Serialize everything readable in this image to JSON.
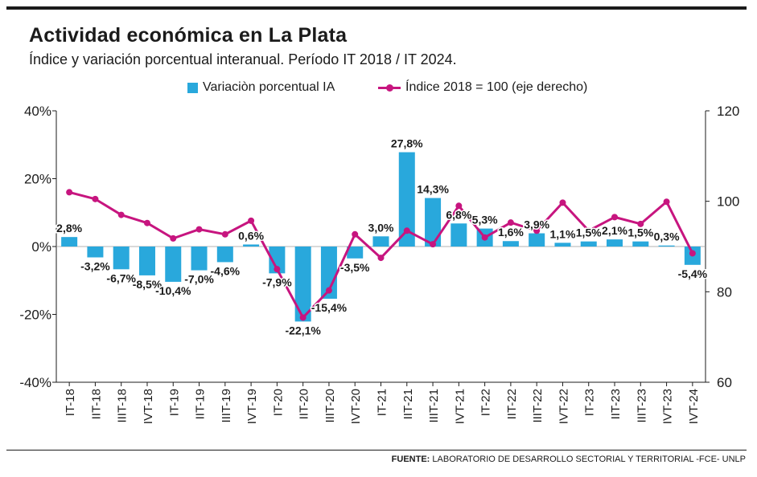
{
  "header": {
    "title": "Actividad económica en La Plata",
    "subtitle": "Índice y variación porcentual interanual. Período IT 2018 / IT 2024."
  },
  "legend": {
    "bar_label": "Variaciòn porcentual IA",
    "line_label": "Índice 2018 = 100 (eje derecho)"
  },
  "source": {
    "label": "FUENTE:",
    "text": "LABORATORIO DE DESARROLLO SECTORIAL Y TERRITORIAL -FCE- UNLP"
  },
  "colors": {
    "bar": "#29a8dc",
    "line": "#c7157f",
    "text": "#1b1b1b"
  },
  "chart_data": {
    "type": "bar",
    "title": "Actividad económica en La Plata",
    "categories": [
      "IT-18",
      "IIT-18",
      "IIIT-18",
      "IVT-18",
      "IT-19",
      "IIT-19",
      "IIIT-19",
      "IVT-19",
      "IT-20",
      "IIT-20",
      "IIIT-20",
      "IVT-20",
      "IT-21",
      "IIT-21",
      "IIIT-21",
      "IVT-21",
      "IT-22",
      "IIT-22",
      "IIIT-22",
      "IVT-22",
      "IT-23",
      "IIT-23",
      "IIIT-23",
      "IVT-23",
      "IVT-24"
    ],
    "series": [
      {
        "name": "Variaciòn porcentual IA",
        "type": "bar",
        "axis": "left",
        "values": [
          2.8,
          -3.2,
          -6.7,
          -8.5,
          -10.4,
          -7.0,
          -4.6,
          0.6,
          -7.9,
          -22.1,
          -15.4,
          -3.5,
          3.0,
          27.8,
          14.3,
          6.8,
          5.3,
          1.6,
          3.9,
          1.1,
          1.5,
          2.1,
          1.5,
          0.3,
          -5.4
        ],
        "labels": [
          "2,8%",
          "-3,2%",
          "-6,7%",
          "-8,5%",
          "-10,4%",
          "-7,0%",
          "-4,6%",
          "0,6%",
          "-7,9%",
          "-22,1%",
          "-15,4%",
          "-3,5%",
          "3,0%",
          "27,8%",
          "14,3%",
          "6,8%",
          "5,3%",
          "1,6%",
          "3,9%",
          "1,1%",
          "1,5%",
          "2,1%",
          "1,5%",
          "0,3%",
          "-5,4%"
        ]
      },
      {
        "name": "Índice 2018 = 100 (eje derecho)",
        "type": "line",
        "axis": "right",
        "values": [
          102,
          100.5,
          97,
          95.2,
          91.8,
          93.8,
          92.7,
          95.7,
          85,
          74.3,
          80.3,
          92.7,
          87.5,
          93.5,
          90.5,
          99,
          92,
          95.3,
          93.5,
          99.7,
          93.5,
          96.5,
          95,
          99.9,
          88.5
        ]
      }
    ],
    "y_left": {
      "ylim": [
        -40,
        40
      ],
      "ticks": [
        -40,
        -20,
        0,
        20,
        40
      ],
      "tick_labels": [
        "-40%",
        "-20%",
        "0%",
        "20%",
        "40%"
      ]
    },
    "y_right": {
      "ylim": [
        60,
        120
      ],
      "ticks": [
        60,
        80,
        100,
        120
      ],
      "tick_labels": [
        "60",
        "80",
        "100",
        "120"
      ]
    },
    "grid": false
  }
}
